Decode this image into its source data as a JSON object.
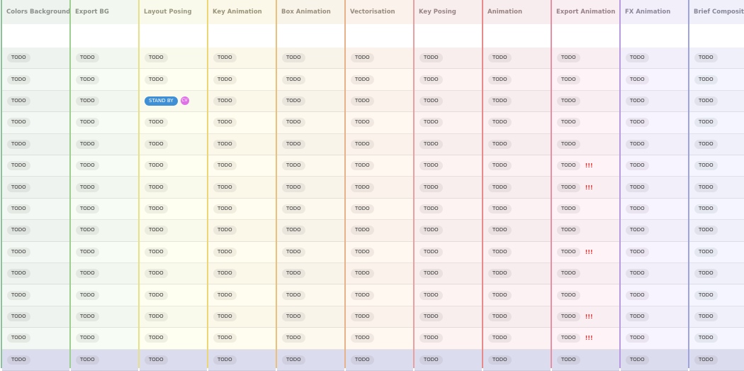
{
  "columns": [
    {
      "key": "colors_backgrounds",
      "label": "Colors Backgrounds",
      "border": "#88c498",
      "header_color": "#8a8f8c",
      "bg": "#eef3ef"
    },
    {
      "key": "export_bg",
      "label": "Export BG",
      "border": "#9ccf8f",
      "header_color": "#8c9186",
      "bg": "#f2f7f0"
    },
    {
      "key": "layout_posing",
      "label": "Layout Posing",
      "border": "#e6e088",
      "header_color": "#9a9880",
      "bg": "#fafaec"
    },
    {
      "key": "key_animation",
      "label": "Key Animation",
      "border": "#ecd776",
      "header_color": "#9a9578",
      "bg": "#fbf8ea"
    },
    {
      "key": "box_animation",
      "label": "Box Animation",
      "border": "#eac07a",
      "header_color": "#9a8f7c",
      "bg": "#f9f4ea"
    },
    {
      "key": "vectorisation",
      "label": "Vectorisation",
      "border": "#e7b28a",
      "header_color": "#998c7f",
      "bg": "#fbf3eb"
    },
    {
      "key": "key_posing",
      "label": "Key Posing",
      "border": "#eaa0a0",
      "header_color": "#998585",
      "bg": "#f9eeee"
    },
    {
      "key": "animation",
      "label": "Animation",
      "border": "#e88a8a",
      "header_color": "#998282",
      "bg": "#f8edee"
    },
    {
      "key": "export_animation",
      "label": "Export Animation",
      "border": "#e88fa6",
      "header_color": "#998289",
      "bg": "#f9eef2"
    },
    {
      "key": "fx_animation",
      "label": "FX Animation",
      "border": "#b79ae0",
      "header_color": "#8e8699",
      "bg": "#f3effa"
    },
    {
      "key": "brief_compositing",
      "label": "Brief Compositing",
      "border": "#9fa4e0",
      "header_color": "#868899",
      "bg": "#eff0fa"
    }
  ],
  "status_default": "TODO",
  "standby_label": "STAND BY",
  "avatar_initials": "CV",
  "priority_marker": "!!!",
  "colors": {
    "standby": "#3f8fd6",
    "avatar": "#e070e8",
    "priority": "#e0302e"
  },
  "rows": [
    {
      "standby_col": null,
      "priority": false
    },
    {
      "standby_col": null,
      "priority": false
    },
    {
      "standby_col": 2,
      "priority": false
    },
    {
      "standby_col": null,
      "priority": false
    },
    {
      "standby_col": null,
      "priority": false
    },
    {
      "standby_col": null,
      "priority": true
    },
    {
      "standby_col": null,
      "priority": true
    },
    {
      "standby_col": null,
      "priority": false
    },
    {
      "standby_col": null,
      "priority": false
    },
    {
      "standby_col": null,
      "priority": true
    },
    {
      "standby_col": null,
      "priority": false
    },
    {
      "standby_col": null,
      "priority": false
    },
    {
      "standby_col": null,
      "priority": true
    },
    {
      "standby_col": null,
      "priority": true
    },
    {
      "standby_col": null,
      "priority": false,
      "selected": true
    }
  ]
}
